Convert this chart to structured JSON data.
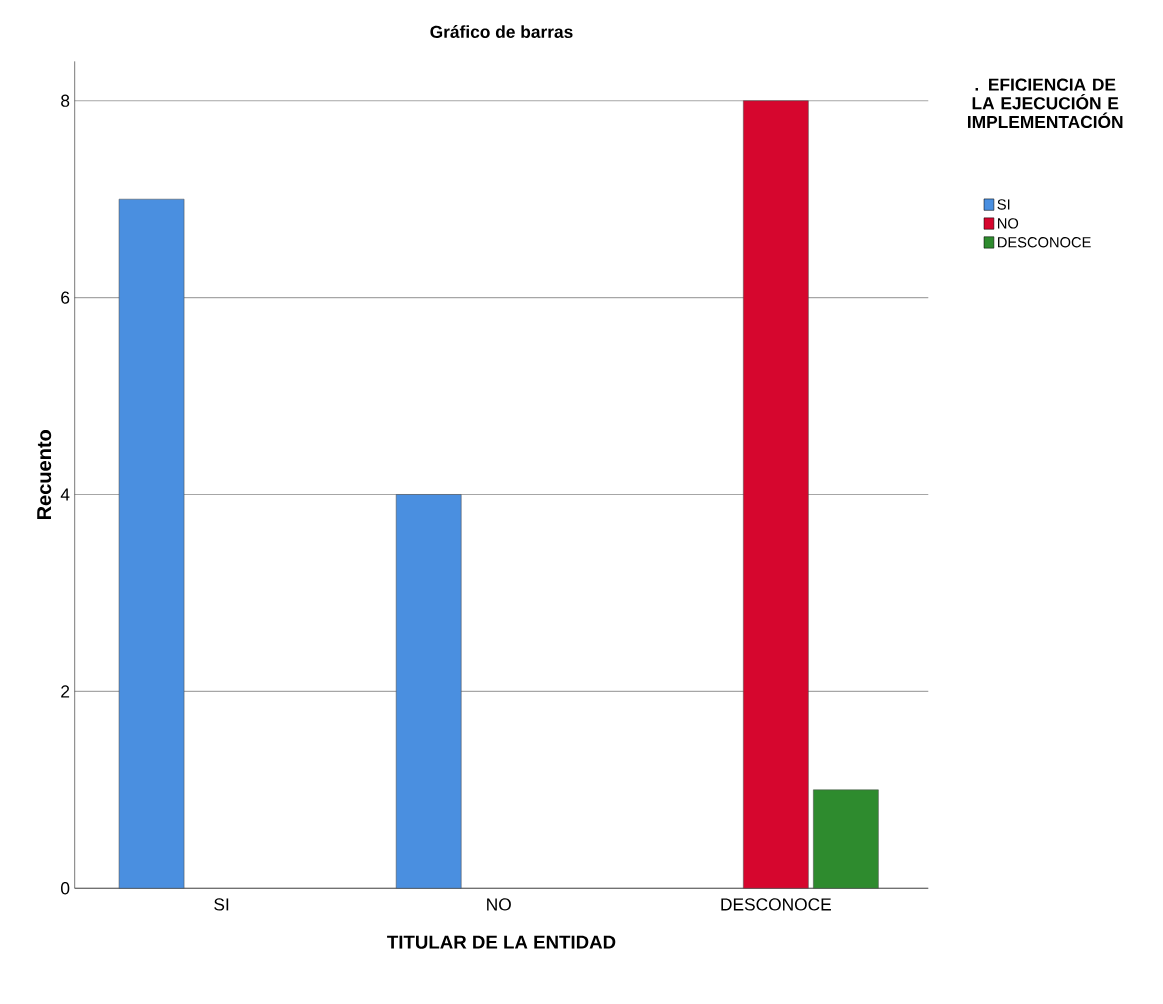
{
  "chart_data": {
    "type": "bar",
    "title": "Gráfico de barras",
    "xlabel": "TITULAR DE LA ENTIDAD",
    "ylabel": "Recuento",
    "legend_title": ". EFICIENCIA DE LA EJECUCIÓN E IMPLEMENTACIÓN",
    "categories": [
      "SI",
      "NO",
      "DESCONOCE"
    ],
    "series": [
      {
        "name": "SI",
        "color": "#4a8fe0",
        "values": [
          7,
          4,
          null
        ]
      },
      {
        "name": "NO",
        "color": "#d6062e",
        "values": [
          null,
          null,
          8
        ]
      },
      {
        "name": "DESCONOCE",
        "color": "#2e8b2e",
        "values": [
          null,
          null,
          1
        ]
      }
    ],
    "ylim": [
      0,
      8.4
    ],
    "yticks": [
      0,
      2,
      4,
      6,
      8
    ],
    "grid": "y",
    "legend": "right"
  }
}
